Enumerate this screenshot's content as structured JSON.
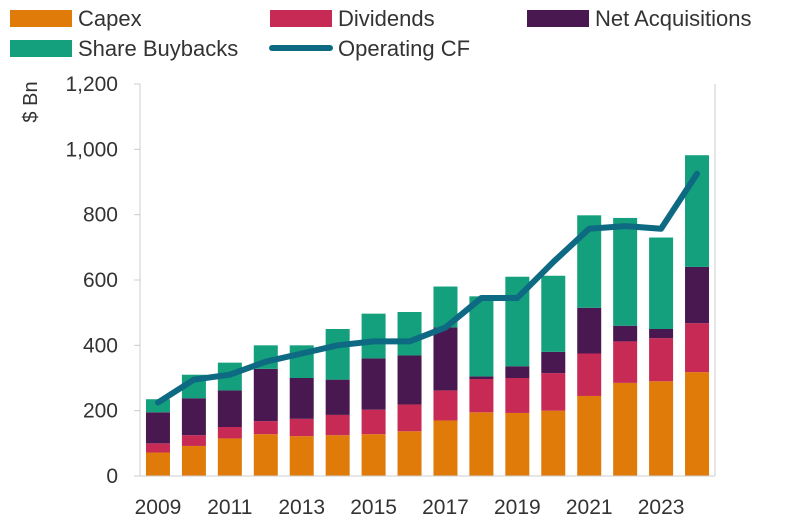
{
  "chart_data": {
    "type": "bar",
    "stacked": true,
    "title": "",
    "xlabel": "",
    "ylabel": "$ Bn",
    "ylim": [
      0,
      1200
    ],
    "yticks": [
      0,
      200,
      400,
      600,
      800,
      1000,
      1200
    ],
    "ytick_labels": [
      "0",
      "200",
      "400",
      "600",
      "800",
      "1,000",
      "1,200"
    ],
    "categories": [
      "2009",
      "2010",
      "2011",
      "2012",
      "2013",
      "2014",
      "2015",
      "2016",
      "2017",
      "2018",
      "2019",
      "2020",
      "2021",
      "2022",
      "2023",
      "2024"
    ],
    "xtick_labels": [
      "2009",
      "2011",
      "2013",
      "2015",
      "2017",
      "2019",
      "2021",
      "2023"
    ],
    "legend_position": "top",
    "series": [
      {
        "name": "Capex",
        "kind": "bar",
        "color": "#e07b0a",
        "values": [
          72,
          92,
          115,
          128,
          122,
          125,
          128,
          137,
          170,
          195,
          193,
          200,
          245,
          285,
          290,
          318
        ]
      },
      {
        "name": "Dividends",
        "kind": "bar",
        "color": "#c62a55",
        "values": [
          28,
          33,
          35,
          40,
          53,
          62,
          75,
          82,
          92,
          102,
          107,
          115,
          130,
          127,
          132,
          150
        ]
      },
      {
        "name": "Net Acquisitions",
        "kind": "bar",
        "color": "#4a1850",
        "values": [
          95,
          113,
          112,
          160,
          125,
          108,
          157,
          150,
          193,
          8,
          36,
          65,
          140,
          48,
          28,
          172
        ]
      },
      {
        "name": "Share Buybacks",
        "kind": "bar",
        "color": "#14a07c",
        "values": [
          40,
          72,
          85,
          72,
          100,
          155,
          137,
          133,
          125,
          245,
          274,
          233,
          283,
          330,
          280,
          342
        ]
      },
      {
        "name": "Operating CF",
        "kind": "line",
        "color": "#0e6a82",
        "values": [
          225,
          295,
          310,
          350,
          375,
          400,
          412,
          412,
          455,
          545,
          545,
          655,
          757,
          765,
          757,
          925
        ]
      }
    ]
  }
}
